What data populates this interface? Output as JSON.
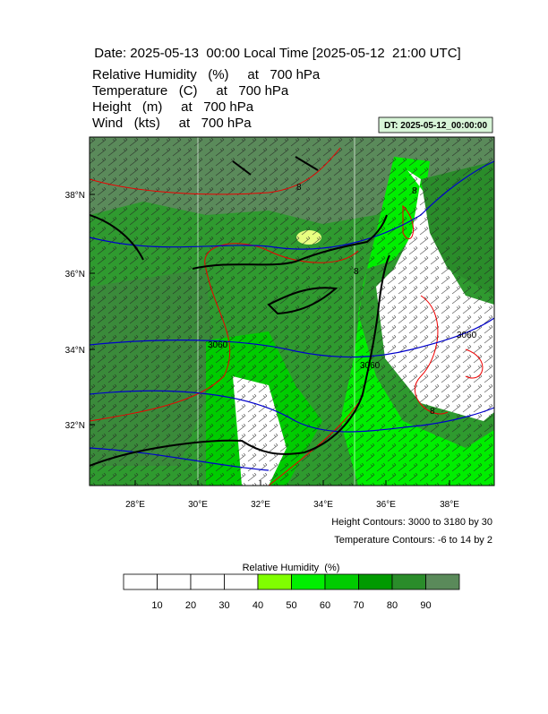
{
  "header": {
    "title": "Date: 2025-05-13  00:00 Local Time [2025-05-12  21:00 UTC]",
    "fields": [
      "Relative Humidity   (%)     at   700 hPa",
      "Temperature   (C)     at   700 hPa",
      "Height   (m)     at   700 hPa",
      "Wind   (kts)     at   700 hPa"
    ],
    "dt_label": "DT: 2025-05-12_00:00:00"
  },
  "map": {
    "lat_labels": [
      "38°N",
      "36°N",
      "34°N",
      "32°N"
    ],
    "lon_labels": [
      "28°E",
      "30°E",
      "32°E",
      "34°E",
      "36°E",
      "38°E"
    ],
    "height_contour_labels": [
      "3060",
      "3060",
      "3060"
    ],
    "temperature_contour_labels": [
      "8",
      "8",
      "8",
      "8"
    ]
  },
  "legend": {
    "height": "Height Contours: 3000 to 3180 by 30",
    "temperature": "Temperature Contours: -6 to 14 by 2"
  },
  "colorbar": {
    "title": "Relative Humidity  (%)",
    "colors": [
      "#ffffff",
      "#ffffff",
      "#ffffff",
      "#ffffff",
      "#80ff00",
      "#00ee00",
      "#00cc00",
      "#009a00",
      "#2a8c2a",
      "#5a8a5a"
    ],
    "labels": [
      "10",
      "20",
      "30",
      "40",
      "50",
      "60",
      "70",
      "80",
      "90"
    ]
  }
}
